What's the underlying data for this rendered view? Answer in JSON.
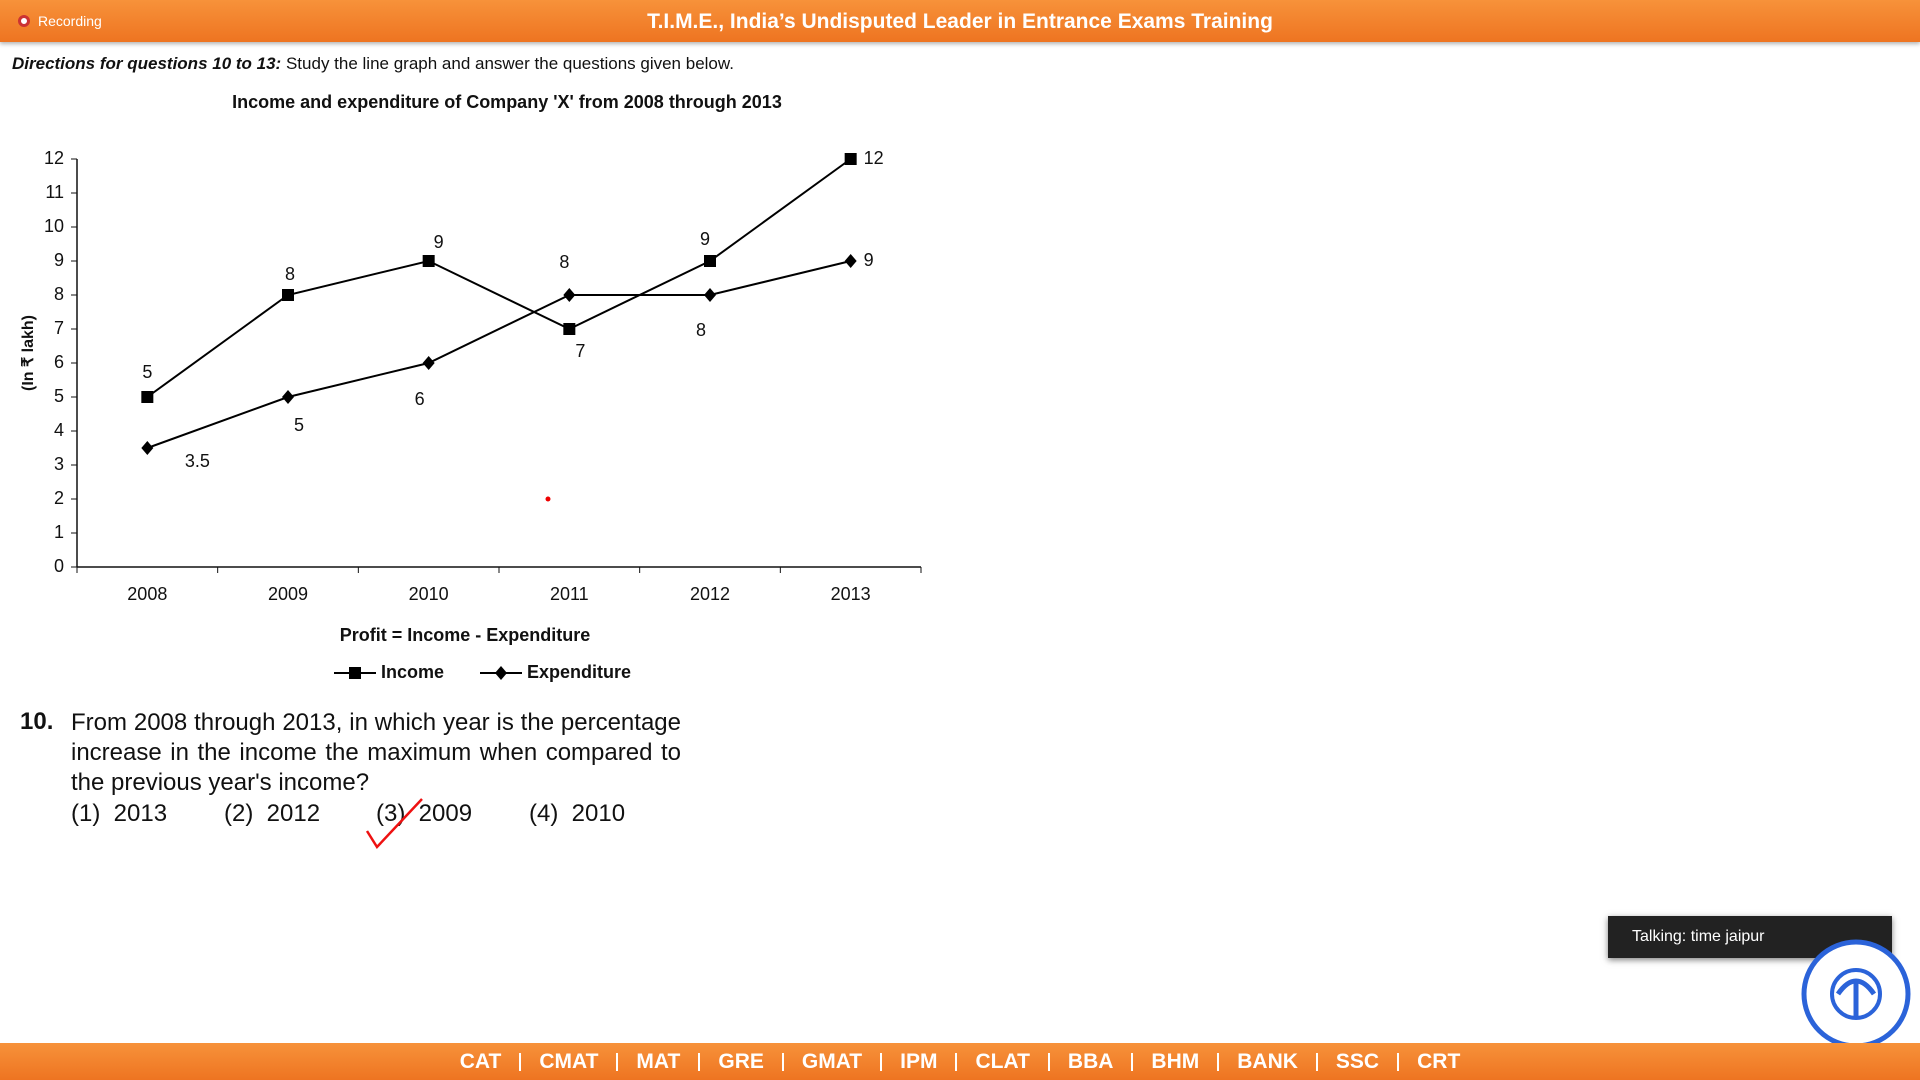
{
  "header": {
    "recording": "Recording",
    "title": "T.I.M.E., India’s Undisputed Leader in Entrance Exams Training"
  },
  "directions": {
    "lead": "Directions for questions 10 to 13:",
    "text": "Study the line graph and answer the questions given below."
  },
  "chart_data": {
    "type": "line",
    "title": "Income and expenditure of Company 'X' from 2008 through 2013",
    "y_label": "(In ₹ lakh)",
    "note": "Profit = Income - Expenditure",
    "categories": [
      "2008",
      "2009",
      "2010",
      "2011",
      "2012",
      "2013"
    ],
    "series": [
      {
        "name": "Income",
        "color": "#000000",
        "marker": "square",
        "values": [
          5,
          8,
          9,
          7,
          9,
          12
        ]
      },
      {
        "name": "Expenditure",
        "color": "#000000",
        "marker": "diamond",
        "values": [
          3.5,
          5,
          6,
          8,
          8,
          9
        ]
      }
    ],
    "ylim": [
      0,
      12
    ],
    "yticks": [
      0,
      1,
      2,
      3,
      4,
      5,
      6,
      7,
      8,
      9,
      10,
      11,
      12
    ],
    "grid": false,
    "legend": "bottom"
  },
  "question": {
    "number": "10.",
    "text": "From 2008 through 2013, in which year is the percentage increase in the income the maximum when compared to the previous year's income?",
    "options": [
      "(1)  2013",
      "(2)  2012",
      "(3)  2009",
      "(4)  2010"
    ]
  },
  "footer": {
    "links": [
      "CAT",
      "CMAT",
      "MAT",
      "GRE",
      "GMAT",
      "IPM",
      "CLAT",
      "BBA",
      "BHM",
      "BANK",
      "SSC",
      "CRT"
    ]
  },
  "popup": {
    "text": "Talking: time jaipur"
  }
}
